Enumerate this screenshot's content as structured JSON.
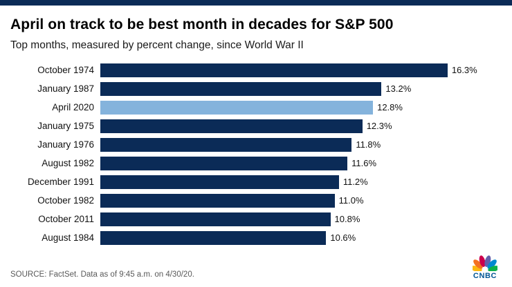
{
  "header": {
    "title": "April on track to be best month in decades for S&P 500",
    "subtitle": "Top months, measured by percent change, since World War II"
  },
  "footer": {
    "source": "SOURCE: FactSet. Data as of 9:45 a.m. on 4/30/20.",
    "logo_text": "CNBC"
  },
  "colors": {
    "bar": "#0b2b57",
    "highlight_bar": "#84b3dc",
    "top_rule": "#0b2b57",
    "logo_text": "#005594",
    "peacock": [
      "#fcb711",
      "#f37021",
      "#cc004c",
      "#6460aa",
      "#0089d0",
      "#0db14b"
    ]
  },
  "icons": {
    "logo": "cnbc-peacock-icon"
  },
  "chart_data": {
    "type": "bar",
    "orientation": "horizontal",
    "title": "April on track to be best month in decades for S&P 500",
    "subtitle": "Top months, measured by percent change, since World War II",
    "categories": [
      "October 1974",
      "January 1987",
      "April 2020",
      "January 1975",
      "January 1976",
      "August 1982",
      "December 1991",
      "October 1982",
      "October 2011",
      "August 1984"
    ],
    "values": [
      16.3,
      13.2,
      12.8,
      12.3,
      11.8,
      11.6,
      11.2,
      11.0,
      10.8,
      10.6
    ],
    "value_labels": [
      "16.3%",
      "13.2%",
      "12.8%",
      "12.3%",
      "11.8%",
      "11.6%",
      "11.2%",
      "11.0%",
      "10.8%",
      "10.6%"
    ],
    "highlight_index": 2,
    "highlight_category": "April 2020",
    "unit": "percent",
    "xlim": [
      0,
      19
    ],
    "grid": false,
    "legend": "none",
    "source_note": "SOURCE: FactSet. Data as of 9:45 a.m. on 4/30/20."
  }
}
